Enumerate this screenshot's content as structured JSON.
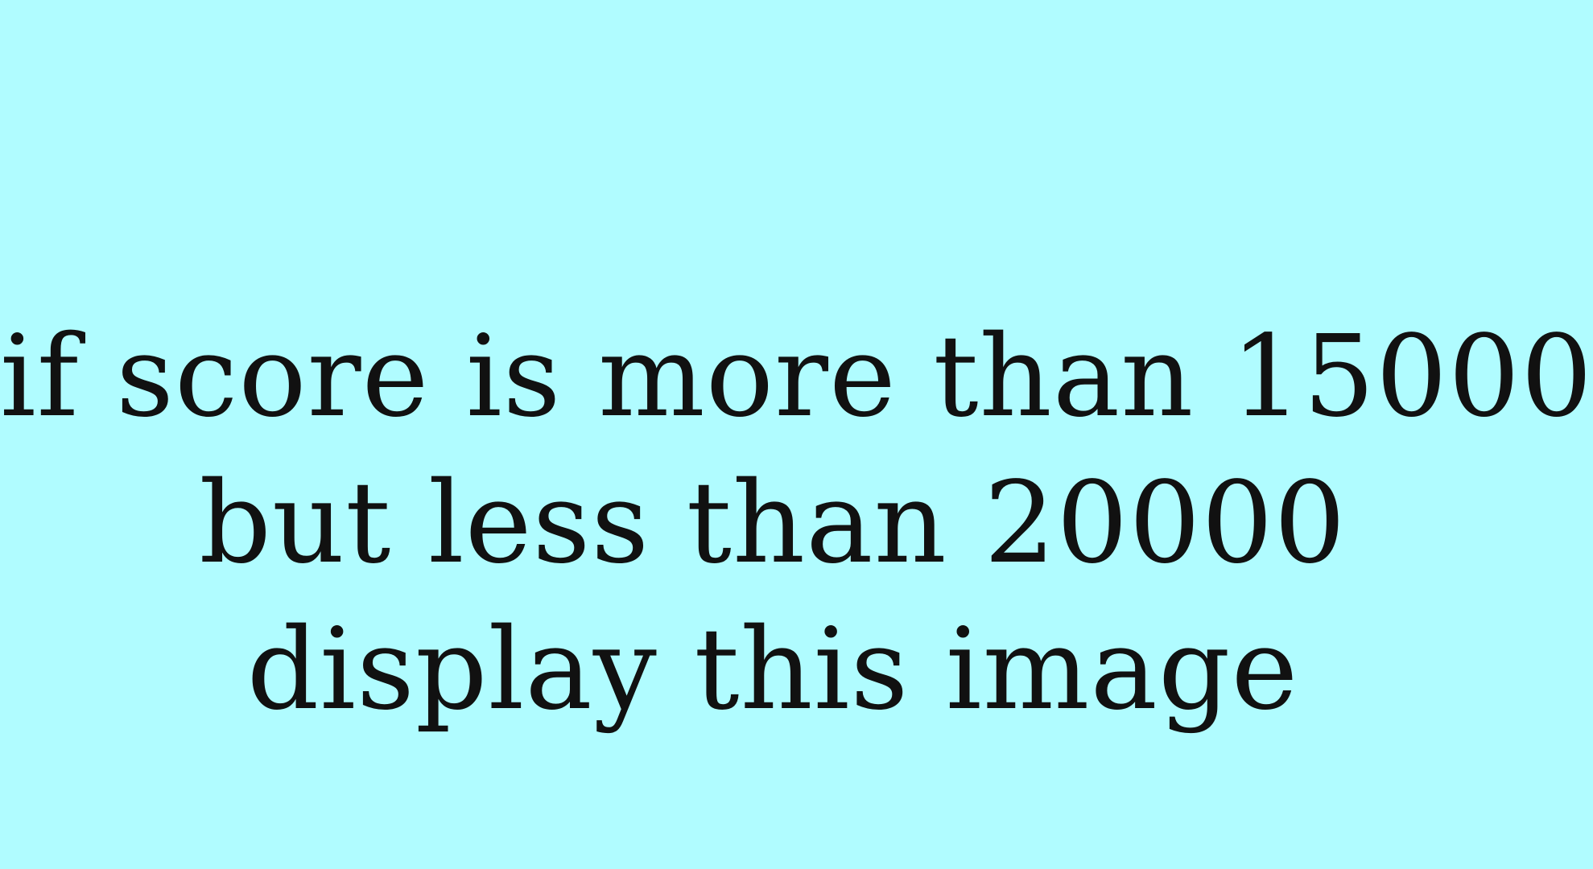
{
  "background_color": "#b0fcff",
  "text_color": "#111111",
  "message": {
    "line1": "if score is more than 15000",
    "line2": "but less than 20000",
    "line3": "display this image"
  }
}
